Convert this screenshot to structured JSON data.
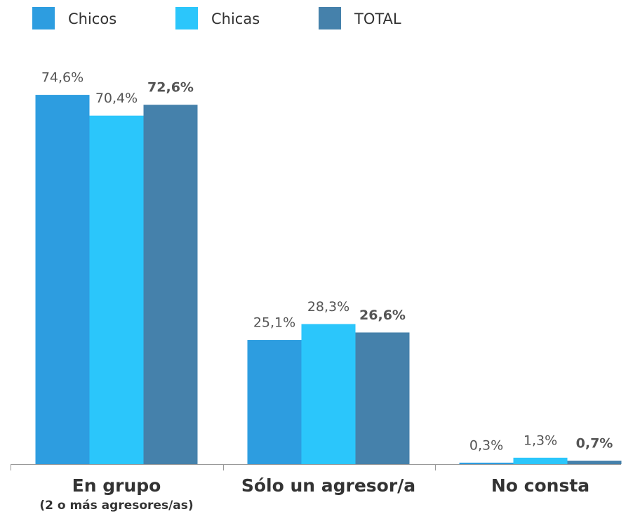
{
  "chart_data": {
    "type": "bar",
    "categories": [
      "En grupo",
      "Sólo un agresor/a",
      "No consta"
    ],
    "category_subtitles": [
      "(2 o más agresores/as)",
      null,
      null
    ],
    "series": [
      {
        "name": "Chicos",
        "color": "#2d9de0",
        "values": [
          74.6,
          25.1,
          0.3
        ],
        "value_labels": [
          "74,6%",
          "25,1%",
          "0,3%"
        ]
      },
      {
        "name": "Chicas",
        "color": "#2bc6fb",
        "values": [
          70.4,
          28.3,
          1.3
        ],
        "value_labels": [
          "70,4%",
          "28,3%",
          "1,3%"
        ]
      },
      {
        "name": "TOTAL",
        "color": "#4581ab",
        "values": [
          72.6,
          26.6,
          0.7
        ],
        "value_labels": [
          "72,6%",
          "26,6%",
          "0,7%"
        ],
        "bold_labels": true
      }
    ],
    "ylim": [
      0,
      80
    ],
    "legend": "top-left"
  }
}
